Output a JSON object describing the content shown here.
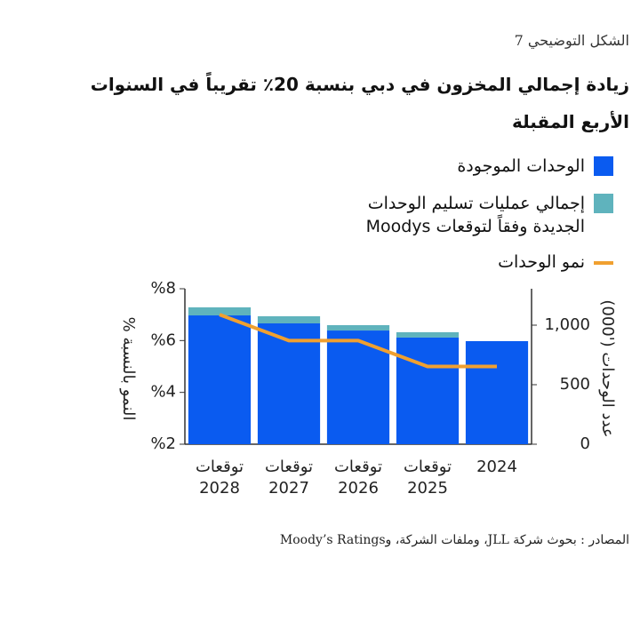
{
  "chart_data": {
    "type": "bar-line",
    "figure_label": "الشكل التوضيحي 7",
    "title": "زيادة إجمالي المخزون في دبي بنسبة 20٪ تقريباً في السنوات الأربع المقبلة",
    "categories": [
      "2024",
      "توقعات 2025",
      "توقعات 2026",
      "توقعات 2027",
      "توقعات 2028"
    ],
    "series": [
      {
        "name": "الوحدات الموجودة",
        "color": "#0a5bf0",
        "axis": "y2",
        "kind": "bar",
        "values": [
          866,
          896,
          955,
          1015,
          1082
        ]
      },
      {
        "name": "إجمالي عمليات تسليم الوحدات الجديدة وفقاً لتوقعات Moodys",
        "color": "#5fb3bd",
        "axis": "y2",
        "kind": "bar",
        "values": [
          null,
          45,
          45,
          60,
          68
        ]
      },
      {
        "name": "نمو الوحدات",
        "color": "#f0a030",
        "axis": "y",
        "kind": "line",
        "values": [
          5.0,
          5.0,
          6.0,
          6.0,
          7.0
        ]
      }
    ],
    "ylabel": "النمو بالنسبة %",
    "ylim": [
      2,
      8
    ],
    "yticks": [
      {
        "value": 2,
        "label": "%2"
      },
      {
        "value": 4,
        "label": "%4"
      },
      {
        "value": 6,
        "label": "%6"
      },
      {
        "value": 8,
        "label": "%8"
      }
    ],
    "y2label": "عدد الوحدات ('000)",
    "y2lim": [
      0,
      1306
    ],
    "y2ticks": [
      0,
      500,
      {
        "value": 1000,
        "label": "1,000"
      }
    ],
    "source": "المصادر : بحوث شركة JLL، وملفات الشركة، وMoody’s Ratings"
  }
}
